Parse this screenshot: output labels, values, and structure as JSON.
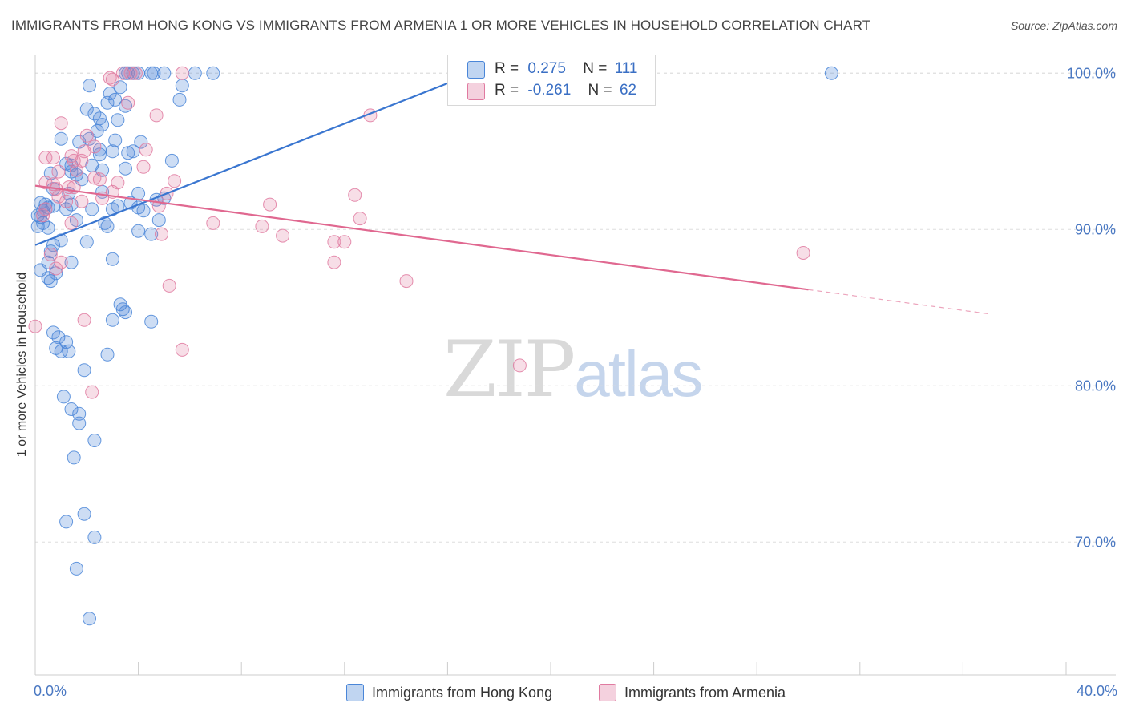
{
  "title": "IMMIGRANTS FROM HONG KONG VS IMMIGRANTS FROM ARMENIA 1 OR MORE VEHICLES IN HOUSEHOLD CORRELATION CHART",
  "source": "Source: ZipAtlas.com",
  "watermark": {
    "zip": "ZIP",
    "atlas": "atlas"
  },
  "legend": {
    "rows": [
      {
        "r_label": "R =",
        "r_value": "0.275",
        "n_label": "N =",
        "n_value": "111"
      },
      {
        "r_label": "R =",
        "r_value": "-0.261",
        "n_label": "N =",
        "n_value": "62"
      }
    ]
  },
  "colors": {
    "hongkong": "#4a86d8",
    "armenia": "#e07aa0",
    "tick": "#4a78c2",
    "grid": "#dddddd"
  },
  "chart_data": {
    "type": "scatter",
    "xlabel": "",
    "ylabel": "1 or more Vehicles in Household",
    "xlim": [
      0,
      40
    ],
    "ylim": [
      61.5,
      101.5
    ],
    "x_ticks_labels": [
      "0.0%",
      "40.0%"
    ],
    "y_ticks": [
      70,
      80,
      90,
      100
    ],
    "y_ticks_labels": [
      "70.0%",
      "80.0%",
      "90.0%",
      "100.0%"
    ],
    "legend_position": "top-center",
    "series": [
      {
        "name": "Immigrants from Hong Kong",
        "r": 0.275,
        "n": 111,
        "trend": {
          "x0": 0.0,
          "y0": 89.0,
          "x1": 17.0,
          "y1": 100.0,
          "solid_to": 17.0
        },
        "points": [
          [
            3.5,
            100
          ],
          [
            3.8,
            100
          ],
          [
            4.0,
            100
          ],
          [
            4.5,
            100
          ],
          [
            3.6,
            100
          ],
          [
            5.0,
            100
          ],
          [
            6.2,
            100
          ],
          [
            6.9,
            100
          ],
          [
            4.6,
            100
          ],
          [
            30.9,
            100
          ],
          [
            2.1,
            99.2
          ],
          [
            5.7,
            99.2
          ],
          [
            3.1,
            98.3
          ],
          [
            2.8,
            98.1
          ],
          [
            5.6,
            98.3
          ],
          [
            2.9,
            98.7
          ],
          [
            3.3,
            99.1
          ],
          [
            2.0,
            97.7
          ],
          [
            2.3,
            97.4
          ],
          [
            2.5,
            97.1
          ],
          [
            2.6,
            96.7
          ],
          [
            2.4,
            96.3
          ],
          [
            1.0,
            95.8
          ],
          [
            1.7,
            95.6
          ],
          [
            2.1,
            95.8
          ],
          [
            3.1,
            95.7
          ],
          [
            4.1,
            95.6
          ],
          [
            2.5,
            95.1
          ],
          [
            3.0,
            95.0
          ],
          [
            3.6,
            94.9
          ],
          [
            3.8,
            95.0
          ],
          [
            2.5,
            94.8
          ],
          [
            5.3,
            94.4
          ],
          [
            1.2,
            94.2
          ],
          [
            1.4,
            94.1
          ],
          [
            2.2,
            94.1
          ],
          [
            2.6,
            93.8
          ],
          [
            3.5,
            93.9
          ],
          [
            1.4,
            93.7
          ],
          [
            1.6,
            93.5
          ],
          [
            0.6,
            93.6
          ],
          [
            1.8,
            93.2
          ],
          [
            0.7,
            92.6
          ],
          [
            1.3,
            92.3
          ],
          [
            2.6,
            92.4
          ],
          [
            4.0,
            92.3
          ],
          [
            3.7,
            91.7
          ],
          [
            4.7,
            91.9
          ],
          [
            5.0,
            92.0
          ],
          [
            0.2,
            91.7
          ],
          [
            0.4,
            91.6
          ],
          [
            0.5,
            91.4
          ],
          [
            0.7,
            91.5
          ],
          [
            0.3,
            91.2
          ],
          [
            1.2,
            91.3
          ],
          [
            1.4,
            91.6
          ],
          [
            2.2,
            91.3
          ],
          [
            3.0,
            91.3
          ],
          [
            3.2,
            91.5
          ],
          [
            4.0,
            91.4
          ],
          [
            4.2,
            91.2
          ],
          [
            0.1,
            90.9
          ],
          [
            0.2,
            90.8
          ],
          [
            0.3,
            90.4
          ],
          [
            0.1,
            90.2
          ],
          [
            0.5,
            90.1
          ],
          [
            1.6,
            90.6
          ],
          [
            2.7,
            90.4
          ],
          [
            2.8,
            90.2
          ],
          [
            4.0,
            89.9
          ],
          [
            4.5,
            89.7
          ],
          [
            4.8,
            90.6
          ],
          [
            1.0,
            89.3
          ],
          [
            0.7,
            89.0
          ],
          [
            2.0,
            89.2
          ],
          [
            0.6,
            88.6
          ],
          [
            3.0,
            88.1
          ],
          [
            1.4,
            87.9
          ],
          [
            0.5,
            87.9
          ],
          [
            0.8,
            87.2
          ],
          [
            0.2,
            87.4
          ],
          [
            0.5,
            86.9
          ],
          [
            0.6,
            86.7
          ],
          [
            3.3,
            85.2
          ],
          [
            3.4,
            84.9
          ],
          [
            3.5,
            84.7
          ],
          [
            3.0,
            84.2
          ],
          [
            4.5,
            84.1
          ],
          [
            0.7,
            83.4
          ],
          [
            0.9,
            83.1
          ],
          [
            1.2,
            82.8
          ],
          [
            0.8,
            82.4
          ],
          [
            1.0,
            82.2
          ],
          [
            1.3,
            82.2
          ],
          [
            2.8,
            82.0
          ],
          [
            1.9,
            81.0
          ],
          [
            1.1,
            79.3
          ],
          [
            1.4,
            78.5
          ],
          [
            1.7,
            78.2
          ],
          [
            1.7,
            77.6
          ],
          [
            2.3,
            76.5
          ],
          [
            1.5,
            75.4
          ],
          [
            1.9,
            71.8
          ],
          [
            1.2,
            71.3
          ],
          [
            2.3,
            70.3
          ],
          [
            1.6,
            68.3
          ],
          [
            2.1,
            65.1
          ],
          [
            3.5,
            97.9
          ],
          [
            3.2,
            97.0
          ]
        ]
      },
      {
        "name": "Immigrants from Armenia",
        "r": -0.261,
        "n": 62,
        "trend": {
          "x0": 0.0,
          "y0": 92.8,
          "x1": 37.0,
          "y1": 84.6,
          "solid_to": 30.0
        },
        "points": [
          [
            3.4,
            100
          ],
          [
            3.7,
            100
          ],
          [
            3.9,
            100
          ],
          [
            5.7,
            100
          ],
          [
            2.9,
            99.7
          ],
          [
            3.0,
            99.6
          ],
          [
            1.0,
            96.8
          ],
          [
            3.6,
            98.1
          ],
          [
            4.7,
            97.3
          ],
          [
            13.0,
            97.3
          ],
          [
            2.0,
            96.0
          ],
          [
            2.3,
            95.3
          ],
          [
            1.9,
            95.0
          ],
          [
            1.4,
            94.7
          ],
          [
            1.5,
            94.4
          ],
          [
            0.7,
            94.6
          ],
          [
            1.8,
            94.4
          ],
          [
            0.4,
            94.6
          ],
          [
            4.2,
            94.0
          ],
          [
            4.3,
            95.1
          ],
          [
            0.9,
            93.7
          ],
          [
            1.6,
            93.8
          ],
          [
            2.3,
            93.3
          ],
          [
            0.4,
            93.0
          ],
          [
            0.7,
            92.9
          ],
          [
            1.3,
            92.7
          ],
          [
            1.5,
            92.7
          ],
          [
            2.5,
            93.2
          ],
          [
            5.4,
            93.1
          ],
          [
            0.8,
            92.6
          ],
          [
            2.6,
            92.0
          ],
          [
            0.9,
            92.1
          ],
          [
            1.2,
            91.8
          ],
          [
            1.8,
            91.8
          ],
          [
            3.0,
            92.4
          ],
          [
            5.1,
            92.3
          ],
          [
            4.8,
            91.5
          ],
          [
            9.1,
            91.6
          ],
          [
            12.4,
            92.2
          ],
          [
            0.4,
            91.3
          ],
          [
            0.3,
            90.9
          ],
          [
            1.4,
            90.4
          ],
          [
            6.9,
            90.4
          ],
          [
            8.8,
            90.2
          ],
          [
            12.6,
            90.7
          ],
          [
            4.9,
            89.7
          ],
          [
            9.6,
            89.6
          ],
          [
            11.6,
            89.2
          ],
          [
            12.0,
            89.2
          ],
          [
            0.6,
            88.4
          ],
          [
            1.0,
            87.9
          ],
          [
            0.8,
            87.5
          ],
          [
            11.6,
            87.9
          ],
          [
            14.4,
            86.7
          ],
          [
            5.2,
            86.4
          ],
          [
            29.8,
            88.5
          ],
          [
            1.9,
            84.2
          ],
          [
            0.0,
            83.8
          ],
          [
            5.7,
            82.3
          ],
          [
            18.8,
            81.3
          ],
          [
            2.2,
            79.6
          ],
          [
            3.2,
            93.0
          ]
        ]
      }
    ]
  },
  "bottom_legend": [
    {
      "label": "Immigrants from Hong Kong"
    },
    {
      "label": "Immigrants from Armenia"
    }
  ]
}
